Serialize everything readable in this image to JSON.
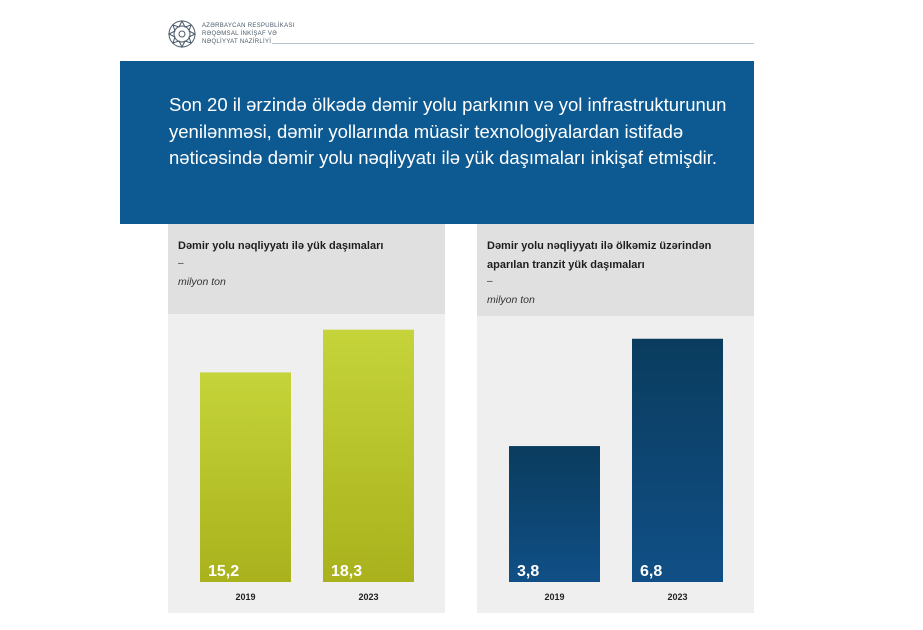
{
  "header": {
    "org_lines": [
      "AZƏRBAYCAN RESPUBLİKASI",
      "RƏQƏMSAL İNKİŞAF VƏ",
      "NƏQLİYYAT NAZİRLİYİ"
    ],
    "emblem_icon": "ministry-emblem"
  },
  "banner": {
    "text": "Son 20 il ərzində ölkədə dəmir yolu parkının və yol infrastrukturunun yenilənməsi, dəmir yollarında müasir texnologiyalardan istifadə nəticəsində dəmir yolu nəqliyyatı ilə yük daşımaları inkişaf etmişdir.",
    "background": "#0d5a92"
  },
  "chart_data": [
    {
      "type": "bar",
      "title": "Dəmir yolu nəqliyyatı ilə yük daşımaları",
      "dash": "–",
      "unit": "milyon ton",
      "categories": [
        "2019",
        "2023"
      ],
      "values": [
        15.2,
        18.3
      ],
      "value_labels": [
        "15,2",
        "18,3"
      ],
      "color_top": "#c5d43a",
      "color_bottom": "#a9b21c",
      "ylim": [
        0,
        22.7
      ],
      "grid": false
    },
    {
      "type": "bar",
      "title": "Dəmir yolu nəqliyyatı ilə ölkəmiz üzərindən aparılan tranzit yük daşımaları",
      "dash": "–",
      "unit": "milyon ton",
      "categories": [
        "2019",
        "2023"
      ],
      "values": [
        3.8,
        6.8
      ],
      "value_labels": [
        "3,8",
        "6,8"
      ],
      "color_top": "#0a3c5e",
      "color_bottom": "#104f86",
      "ylim": [
        0,
        8.75
      ],
      "grid": false
    }
  ]
}
